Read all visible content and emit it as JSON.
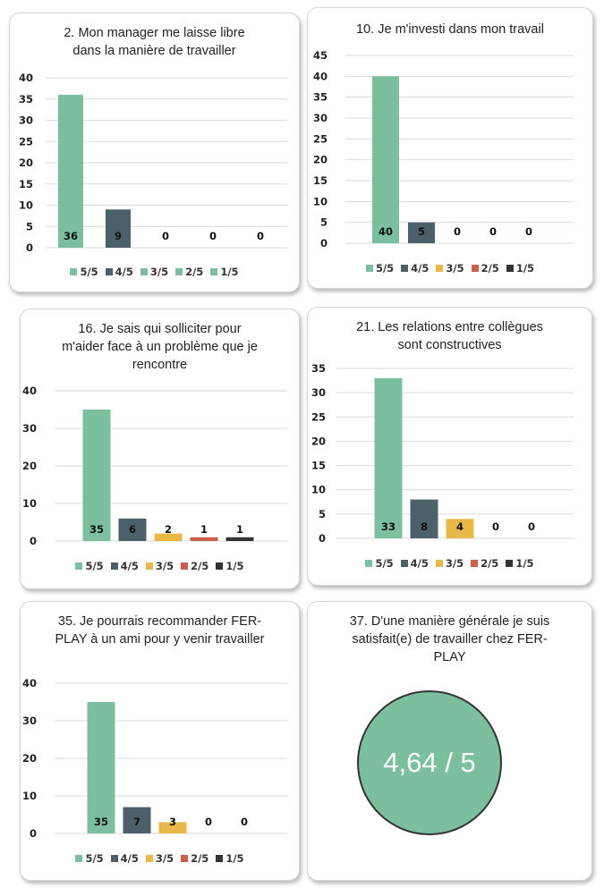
{
  "colors": {
    "5/5": "#7bbf9e",
    "4/5": "#4b6068",
    "3/5": "#e8b849",
    "2/5": "#c8614b",
    "1/5": "#333333",
    "grid": "#d9d9d9"
  },
  "chart_data": [
    {
      "type": "bar",
      "title": "2. Mon manager me laisse libre dans la manière de travailler",
      "title_lines": [
        "2. Mon manager me laisse libre",
        "dans la manière de travailler"
      ],
      "categories": [
        "5/5",
        "4/5",
        "3/5",
        "2/5",
        "1/5"
      ],
      "values": [
        36,
        9,
        0,
        0,
        0
      ],
      "ylim": [
        0,
        40
      ],
      "yticks": [
        0,
        5,
        10,
        15,
        20,
        25,
        30,
        35,
        40
      ],
      "legend": [
        "5/5",
        "4/5",
        "3/5",
        "2/5",
        "1/5"
      ],
      "legend_colors": [
        "#7bbf9e",
        "#4b6068",
        "#7bbf9e",
        "#7bbf9e",
        "#7bbf9e"
      ],
      "legend_position": "bottom",
      "grid": true
    },
    {
      "type": "bar",
      "title": "10. Je m'investi dans mon travail",
      "title_lines": [
        "10. Je m'investi dans mon travail"
      ],
      "categories": [
        "5/5",
        "4/5",
        "3/5",
        "2/5",
        "1/5"
      ],
      "values": [
        40,
        5,
        0,
        0,
        0
      ],
      "ylim": [
        0,
        45
      ],
      "yticks": [
        0,
        5,
        10,
        15,
        20,
        25,
        30,
        35,
        40,
        45
      ],
      "legend": [
        "5/5",
        "4/5",
        "3/5",
        "2/5",
        "1/5"
      ],
      "legend_colors": [
        "#7bbf9e",
        "#4b6068",
        "#e8b849",
        "#c8614b",
        "#333333"
      ],
      "legend_position": "bottom",
      "grid": true
    },
    {
      "type": "bar",
      "title": "16. Je sais qui solliciter pour m'aider face à un problème que je rencontre",
      "title_lines": [
        "16. Je sais qui solliciter pour",
        "m'aider face à un problème que je",
        "rencontre"
      ],
      "categories": [
        "5/5",
        "4/5",
        "3/5",
        "2/5",
        "1/5"
      ],
      "values": [
        35,
        6,
        2,
        1,
        1
      ],
      "ylim": [
        0,
        40
      ],
      "yticks": [
        0,
        10,
        20,
        30,
        40
      ],
      "legend": [
        "5/5",
        "4/5",
        "3/5",
        "2/5",
        "1/5"
      ],
      "legend_colors": [
        "#7bbf9e",
        "#4b6068",
        "#e8b849",
        "#c8614b",
        "#333333"
      ],
      "legend_position": "bottom",
      "grid": true
    },
    {
      "type": "bar",
      "title": "21. Les relations entre collègues sont constructives",
      "title_lines": [
        "21. Les relations entre collègues",
        "sont constructives"
      ],
      "categories": [
        "5/5",
        "4/5",
        "3/5",
        "2/5",
        "1/5"
      ],
      "values": [
        33,
        8,
        4,
        0,
        0
      ],
      "ylim": [
        0,
        35
      ],
      "yticks": [
        0,
        5,
        10,
        15,
        20,
        25,
        30,
        35
      ],
      "legend": [
        "5/5",
        "4/5",
        "3/5",
        "2/5",
        "1/5"
      ],
      "legend_colors": [
        "#7bbf9e",
        "#4b6068",
        "#e8b849",
        "#c8614b",
        "#333333"
      ],
      "legend_position": "bottom",
      "grid": true
    },
    {
      "type": "bar",
      "title": "35. Je pourrais recommander FER-PLAY à un ami pour y venir travailler",
      "title_lines": [
        "35. Je pourrais recommander FER-",
        "PLAY à un ami pour y venir",
        "travailler"
      ],
      "categories": [
        "5/5",
        "4/5",
        "3/5",
        "2/5",
        "1/5"
      ],
      "values": [
        35,
        7,
        3,
        0,
        0
      ],
      "ylim": [
        0,
        40
      ],
      "yticks": [
        0,
        10,
        20,
        30,
        40
      ],
      "legend": [
        "5/5",
        "4/5",
        "3/5",
        "2/5",
        "1/5"
      ],
      "legend_colors": [
        "#7bbf9e",
        "#4b6068",
        "#e8b849",
        "#c8614b",
        "#333333"
      ],
      "legend_position": "bottom",
      "grid": true
    }
  ],
  "score_card": {
    "title_lines": [
      "37. D'une manière générale je suis",
      "satisfait(e) de travailler chez FER-",
      "PLAY"
    ],
    "value": "4,64 / 5",
    "color": "#7bbf9e"
  }
}
